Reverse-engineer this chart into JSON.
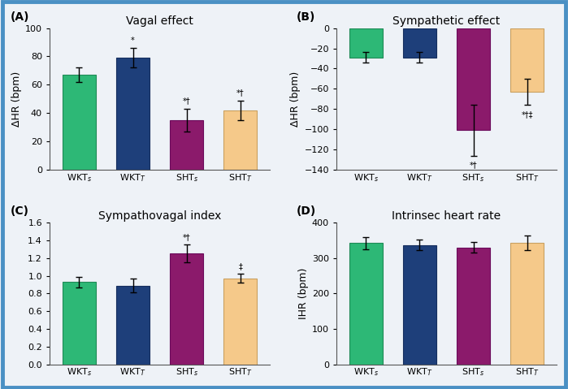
{
  "panel_A": {
    "title": "Vagal effect",
    "label": "(A)",
    "ylabel": "ΔHR (bpm)",
    "ylim": [
      0,
      100
    ],
    "yticks": [
      0,
      20,
      40,
      60,
      80,
      100
    ],
    "values": [
      67,
      79,
      35,
      42
    ],
    "errors": [
      5,
      7,
      8,
      7
    ],
    "annotations": [
      "",
      "*",
      "*†",
      "*†"
    ]
  },
  "panel_B": {
    "title": "Sympathetic effect",
    "label": "(B)",
    "ylabel": "ΔHR (bpm)",
    "ylim": [
      -140,
      0
    ],
    "yticks": [
      0,
      -20,
      -40,
      -60,
      -80,
      -100,
      -120,
      -140
    ],
    "values": [
      -29,
      -29,
      -101,
      -63
    ],
    "errors": [
      5,
      5,
      25,
      13
    ],
    "annotations": [
      "",
      "",
      "*†",
      "*†‡"
    ]
  },
  "panel_C": {
    "title": "Sympathovagal index",
    "label": "(C)",
    "ylabel": "",
    "ylim": [
      0,
      1.6
    ],
    "yticks": [
      0.0,
      0.2,
      0.4,
      0.6,
      0.8,
      1.0,
      1.2,
      1.4,
      1.6
    ],
    "values": [
      0.93,
      0.89,
      1.25,
      0.97
    ],
    "errors": [
      0.06,
      0.08,
      0.1,
      0.05
    ],
    "annotations": [
      "",
      "",
      "*†",
      "‡"
    ]
  },
  "panel_D": {
    "title": "Intrinsec heart rate",
    "label": "(D)",
    "ylabel": "IHR (bpm)",
    "ylim": [
      0,
      400
    ],
    "yticks": [
      0,
      100,
      200,
      300,
      400
    ],
    "values": [
      342,
      337,
      330,
      343
    ],
    "errors": [
      18,
      15,
      15,
      20
    ],
    "annotations": [
      "",
      "",
      "",
      ""
    ]
  },
  "categories": [
    "WKT$_s$",
    "WKT$_T$",
    "SHT$_s$",
    "SHT$_T$"
  ],
  "colors": [
    "#2db876",
    "#1e3f7a",
    "#8b1a6b",
    "#f5c98a"
  ],
  "edge_colors": [
    "#1e8a55",
    "#152e5e",
    "#6b0a5b",
    "#c9a060"
  ],
  "bar_width": 0.62,
  "label_fontsize": 9,
  "title_fontsize": 10,
  "tick_fontsize": 8,
  "annot_fontsize": 8,
  "background_color": "#eef2f7",
  "panel_bg": "#eef2f7",
  "border_color": "#4a90c4"
}
